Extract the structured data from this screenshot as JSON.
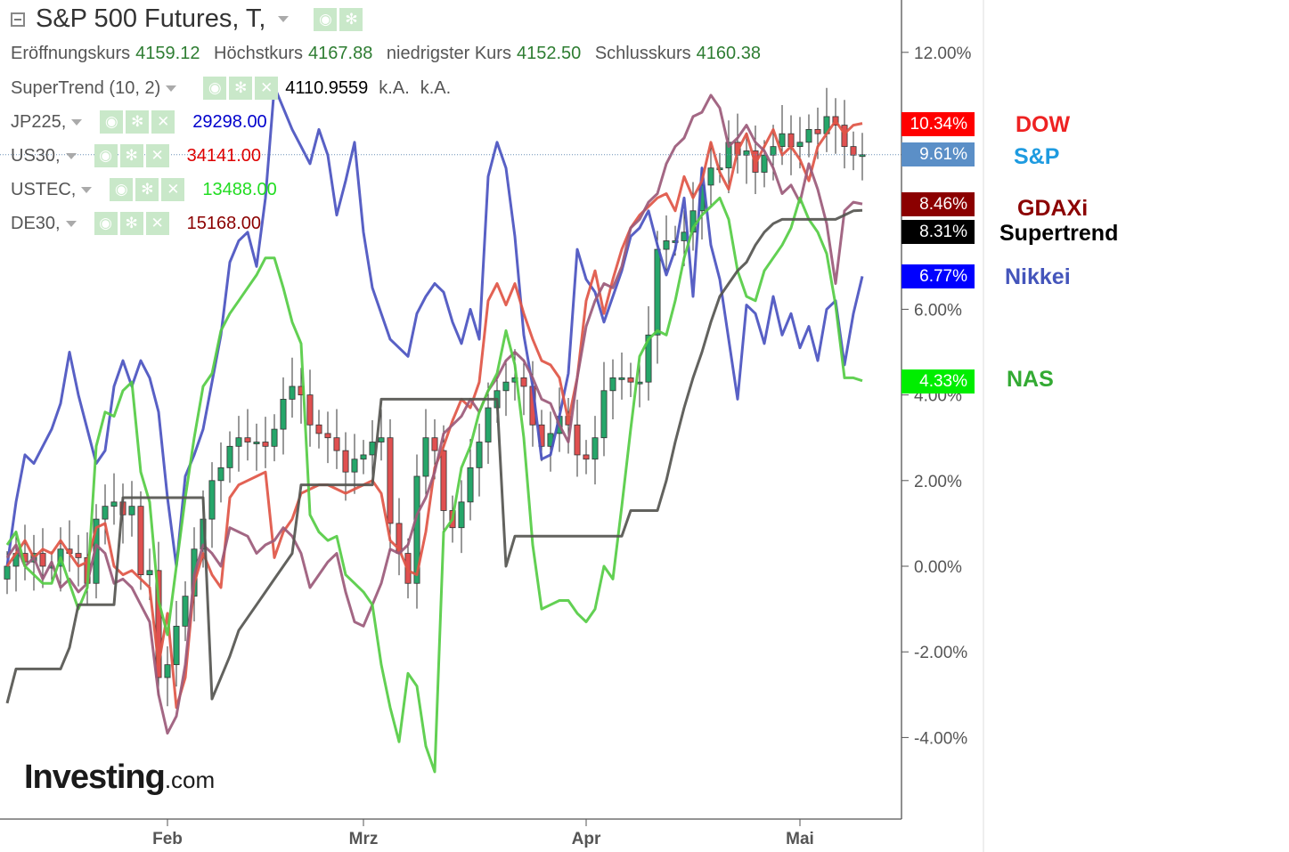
{
  "header": {
    "title": "S&P 500 Futures, T,",
    "ohlc": [
      {
        "label": "Eröffnungskurs",
        "value": "4159.12"
      },
      {
        "label": "Höchstkurs",
        "value": "4167.88"
      },
      {
        "label": "niedrigster Kurs",
        "value": "4152.50"
      },
      {
        "label": "Schlusskurs",
        "value": "4160.38"
      }
    ]
  },
  "indicators": [
    {
      "name": "SuperTrend (10, 2)",
      "value": "4110.9559",
      "extra1": "k.A.",
      "extra2": "k.A.",
      "color": "#000000"
    },
    {
      "name": "JP225,",
      "value": "29298.00",
      "color": "#0000cc"
    },
    {
      "name": "US30,",
      "value": "34141.00",
      "color": "#dd0000"
    },
    {
      "name": "USTEC,",
      "value": "13488.00",
      "color": "#22dd22"
    },
    {
      "name": "DE30,",
      "value": "15168.00",
      "color": "#8b0000"
    }
  ],
  "badges": [
    {
      "text": "10.34%",
      "bg": "#ff0000"
    },
    {
      "text": "9.61%",
      "bg": "#5b8fc7"
    },
    {
      "text": "8.46%",
      "bg": "#8b0000"
    },
    {
      "text": "8.31%",
      "bg": "#000000"
    },
    {
      "text": "6.77%",
      "bg": "#0000ff"
    },
    {
      "text": "4.33%",
      "bg": "#00ee00"
    }
  ],
  "ext_labels": [
    {
      "text": "DOW",
      "color": "#ee2222"
    },
    {
      "text": "S&P",
      "color": "#1e9be0"
    },
    {
      "text": "GDAXi",
      "color": "#8b0000"
    },
    {
      "text": "Supertrend",
      "color": "#000000"
    },
    {
      "text": "Nikkei",
      "color": "#4455bb"
    },
    {
      "text": "NAS",
      "color": "#33aa33"
    }
  ],
  "logo": {
    "main": "Investing",
    "suffix": ".com"
  },
  "chart_data": {
    "type": "line",
    "title": "S&P 500 Futures, T,",
    "x_ticks": [
      "Feb",
      "Mrz",
      "Apr",
      "Mai"
    ],
    "y_ticks": [
      "-4.00%",
      "-2.00%",
      "0.00%",
      "2.00%",
      "4.00%",
      "6.00%",
      "12.00%"
    ],
    "ylim": [
      -4.8,
      12.6
    ],
    "grid": false,
    "legend": "top-left",
    "current_price_line": 9.61,
    "series": [
      {
        "name": "Nikkei",
        "color": "#4a52c0",
        "values": [
          0.0,
          1.5,
          2.6,
          2.4,
          2.8,
          3.2,
          3.8,
          5.0,
          4.0,
          3.2,
          2.4,
          2.7,
          4.2,
          4.8,
          4.2,
          4.8,
          4.4,
          3.6,
          1.6,
          0.0,
          2.1,
          2.6,
          3.2,
          4.3,
          5.4,
          7.1,
          7.6,
          7.8,
          7.0,
          8.6,
          11.2,
          10.7,
          10.2,
          9.8,
          9.4,
          10.2,
          9.6,
          8.2,
          9.0,
          9.9,
          7.8,
          6.5,
          5.9,
          5.3,
          5.1,
          4.9,
          5.9,
          6.3,
          6.6,
          6.4,
          5.7,
          5.2,
          6.0,
          5.3,
          9.1,
          9.9,
          9.3,
          7.7,
          5.4,
          4.2,
          2.5,
          2.6,
          3.5,
          4.5,
          7.4,
          6.7,
          6.4,
          5.7,
          6.3,
          6.9,
          7.7,
          7.9,
          8.3,
          7.5,
          6.8,
          7.4,
          8.6,
          6.3,
          9.3,
          7.5,
          6.7,
          5.3,
          3.9,
          6.1,
          5.9,
          5.2,
          6.3,
          5.4,
          5.9,
          5.1,
          5.6,
          4.8,
          6.0,
          6.2,
          4.7,
          5.9,
          6.77
        ]
      },
      {
        "name": "DOW",
        "color": "#e05545",
        "values": [
          0.0,
          0.3,
          0.6,
          0.2,
          0.4,
          0.3,
          0.6,
          0.3,
          0.0,
          0.1,
          0.9,
          1.0,
          0.0,
          -0.2,
          -0.1,
          -0.3,
          -0.5,
          -2.3,
          -1.1,
          -3.3,
          -2.6,
          -0.4,
          0.3,
          -0.2,
          -0.5,
          1.6,
          1.9,
          2.0,
          2.1,
          2.2,
          0.2,
          0.8,
          1.1,
          1.7,
          1.8,
          1.9,
          1.9,
          1.8,
          1.7,
          1.8,
          1.9,
          2.0,
          1.7,
          0.6,
          0.4,
          -0.1,
          -0.2,
          0.8,
          2.3,
          2.8,
          3.4,
          3.9,
          3.7,
          4.3,
          6.2,
          6.6,
          6.1,
          6.6,
          5.9,
          5.3,
          4.8,
          4.7,
          4.4,
          3.4,
          4.4,
          6.2,
          6.9,
          5.9,
          6.7,
          7.4,
          7.9,
          8.2,
          8.4,
          8.6,
          8.7,
          8.3,
          9.1,
          8.6,
          9.0,
          9.9,
          9.2,
          8.8,
          9.7,
          10.1,
          9.4,
          9.8,
          10.2,
          9.6,
          9.8,
          9.5,
          9.0,
          9.8,
          10.1,
          10.4,
          10.1,
          10.3,
          10.34
        ]
      },
      {
        "name": "S&P",
        "color": "#22aa66",
        "values": [
          0.0,
          0.3,
          0.1,
          0.3,
          0.0,
          0.0,
          0.4,
          0.3,
          0.2,
          -0.4,
          1.1,
          1.4,
          1.5,
          1.2,
          1.4,
          -0.2,
          -0.1,
          -2.6,
          -2.3,
          -1.4,
          -0.7,
          0.4,
          1.1,
          2.0,
          2.3,
          2.8,
          3.0,
          2.9,
          2.9,
          2.8,
          3.2,
          3.9,
          4.2,
          4.0,
          3.3,
          3.1,
          3.0,
          2.7,
          2.2,
          2.5,
          2.6,
          2.9,
          3.0,
          1.0,
          0.3,
          -0.4,
          2.1,
          3.0,
          2.7,
          1.3,
          0.9,
          1.5,
          2.3,
          2.9,
          3.7,
          4.1,
          4.3,
          4.4,
          4.2,
          3.3,
          2.8,
          3.1,
          3.5,
          3.3,
          2.6,
          2.5,
          3.0,
          4.1,
          4.4,
          4.4,
          4.3,
          4.3,
          5.4,
          7.4,
          7.6,
          7.6,
          7.8,
          8.3,
          8.9,
          9.3,
          9.3,
          9.9,
          9.6,
          9.7,
          9.2,
          9.6,
          9.8,
          10.1,
          9.8,
          9.9,
          10.2,
          10.1,
          10.5,
          10.3,
          9.8,
          9.6,
          9.61
        ]
      },
      {
        "name": "GDAXi",
        "color": "#9b5a7a",
        "values": [
          0.2,
          0.5,
          0.0,
          0.2,
          -0.3,
          0.1,
          -0.5,
          -0.3,
          -0.6,
          -0.4,
          0.5,
          0.3,
          -0.4,
          -0.3,
          -0.5,
          -0.9,
          -1.3,
          -3.0,
          -3.9,
          -3.5,
          -2.3,
          -0.2,
          0.5,
          0.3,
          0.0,
          0.9,
          0.8,
          0.7,
          0.3,
          0.5,
          0.6,
          0.9,
          0.7,
          0.3,
          -0.5,
          -0.2,
          0.1,
          0.3,
          -0.6,
          -1.3,
          -1.4,
          -0.9,
          -0.4,
          0.4,
          0.3,
          0.5,
          1.2,
          1.6,
          2.2,
          3.1,
          3.3,
          3.5,
          3.9,
          3.6,
          4.1,
          4.4,
          4.8,
          5.0,
          4.8,
          4.4,
          3.9,
          3.8,
          3.3,
          2.9,
          4.4,
          5.6,
          6.2,
          6.6,
          6.5,
          7.0,
          7.9,
          8.1,
          8.5,
          8.7,
          9.4,
          9.8,
          10.0,
          10.5,
          10.6,
          11.0,
          10.7,
          9.8,
          10.0,
          10.3,
          9.9,
          9.7,
          9.3,
          8.7,
          8.9,
          8.5,
          9.4,
          8.8,
          8.0,
          6.6,
          8.3,
          8.5,
          8.46
        ]
      },
      {
        "name": "NAS",
        "color": "#55cc44",
        "values": [
          0.5,
          0.8,
          0.0,
          -0.2,
          -0.4,
          -0.4,
          0.2,
          -0.4,
          -1.0,
          -0.5,
          2.8,
          3.6,
          3.5,
          4.1,
          4.3,
          2.2,
          1.5,
          -0.8,
          -1.6,
          0.0,
          1.6,
          3.0,
          4.2,
          4.5,
          5.5,
          5.9,
          6.2,
          6.5,
          6.8,
          7.2,
          7.2,
          6.5,
          5.7,
          5.2,
          1.2,
          0.8,
          0.6,
          0.7,
          -0.2,
          -0.4,
          -0.6,
          -0.9,
          -2.3,
          -3.3,
          -4.1,
          -2.5,
          -2.8,
          -4.2,
          -4.8,
          0.8,
          1.1,
          2.3,
          2.8,
          3.6,
          4.1,
          4.5,
          5.5,
          4.7,
          3.0,
          0.5,
          -1.0,
          -0.9,
          -0.8,
          -0.8,
          -1.1,
          -1.3,
          -1.0,
          0.0,
          -0.3,
          1.4,
          3.2,
          4.9,
          5.3,
          5.5,
          5.4,
          6.2,
          7.2,
          7.9,
          8.2,
          8.4,
          8.6,
          8.1,
          6.9,
          6.3,
          6.2,
          6.9,
          7.2,
          7.5,
          7.9,
          8.6,
          8.1,
          7.8,
          7.3,
          6.1,
          4.4,
          4.4,
          4.33
        ]
      },
      {
        "name": "Supertrend",
        "color": "#555550",
        "values": [
          -3.2,
          -2.4,
          -2.4,
          -2.4,
          -2.4,
          -2.4,
          -2.4,
          -1.9,
          -0.9,
          -0.9,
          -0.9,
          -0.9,
          -0.9,
          1.6,
          1.6,
          1.6,
          1.6,
          1.6,
          1.6,
          1.6,
          1.6,
          1.6,
          1.6,
          -3.1,
          -2.6,
          -2.1,
          -1.5,
          -1.2,
          -0.9,
          -0.6,
          -0.3,
          0.0,
          0.3,
          1.9,
          1.9,
          1.9,
          1.9,
          1.9,
          1.9,
          1.9,
          1.9,
          1.9,
          3.9,
          3.9,
          3.9,
          3.9,
          3.9,
          3.9,
          3.9,
          3.9,
          3.9,
          3.9,
          3.9,
          3.9,
          3.9,
          3.9,
          0.0,
          0.7,
          0.7,
          0.7,
          0.7,
          0.7,
          0.7,
          0.7,
          0.7,
          0.7,
          0.7,
          0.7,
          0.7,
          0.7,
          1.3,
          1.3,
          1.3,
          1.3,
          2.0,
          2.9,
          3.7,
          4.4,
          5.0,
          5.7,
          6.3,
          6.6,
          6.9,
          7.1,
          7.5,
          7.8,
          8.0,
          8.1,
          8.1,
          8.1,
          8.1,
          8.1,
          8.1,
          8.1,
          8.2,
          8.3,
          8.31
        ]
      }
    ]
  }
}
